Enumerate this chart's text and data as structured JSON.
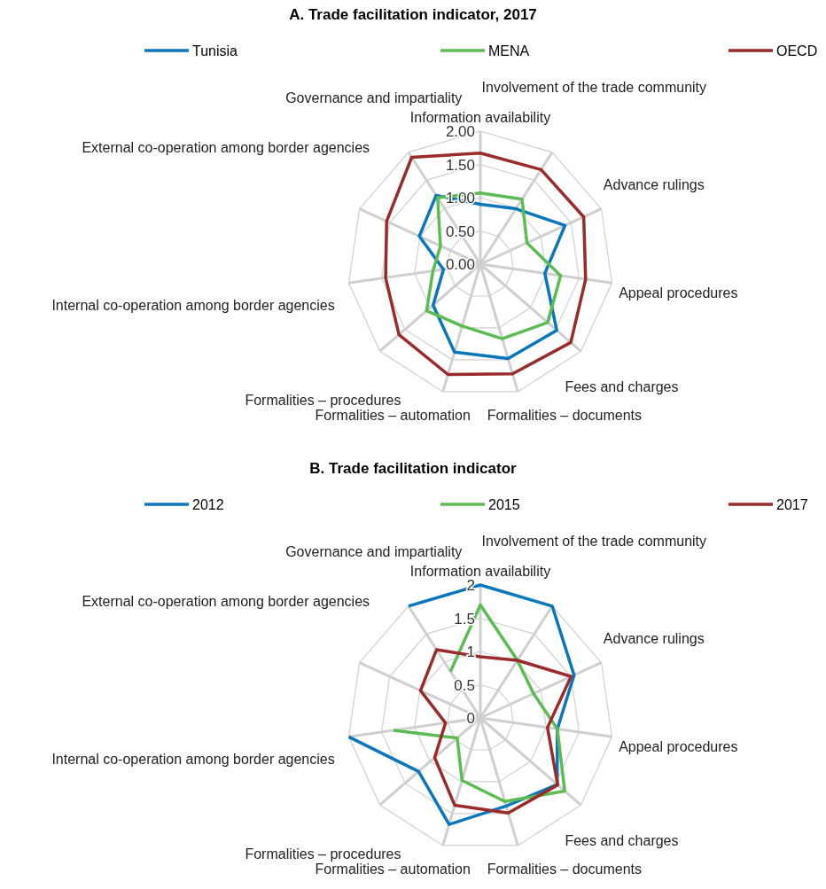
{
  "chart_data": [
    {
      "type": "radar",
      "title": "A. Trade facilitation indicator, 2017",
      "categories": [
        "Information availability",
        "Involvement of the trade community",
        "Advance rulings",
        "Appeal procedures",
        "Fees and charges",
        "Formalities – documents",
        "Formalities – automation",
        "Formalities – procedures",
        "Internal co-operation among border agencies",
        "External co-operation among border agencies",
        "Governance and impartiality"
      ],
      "series": [
        {
          "name": "Tunisia",
          "color": "#0a77bd",
          "values": [
            0.9,
            0.99,
            1.4,
            0.98,
            1.52,
            1.48,
            1.38,
            0.94,
            0.56,
            1.01,
            1.23
          ]
        },
        {
          "name": "MENA",
          "color": "#5cbb52",
          "values": [
            1.07,
            1.16,
            0.77,
            1.22,
            1.34,
            1.17,
            0.97,
            1.07,
            0.72,
            0.66,
            1.19
          ]
        },
        {
          "name": "OECD",
          "color": "#9b2b2b",
          "values": [
            1.67,
            1.69,
            1.71,
            1.6,
            1.8,
            1.72,
            1.73,
            1.62,
            1.44,
            1.55,
            1.91
          ]
        }
      ],
      "ylim": [
        0,
        2
      ],
      "yticks": [
        {
          "value": 0,
          "label": "0.00"
        },
        {
          "value": 0.5,
          "label": "0.50"
        },
        {
          "value": 1,
          "label": "1.00"
        },
        {
          "value": 1.5,
          "label": "1.50"
        },
        {
          "value": 2,
          "label": "2.00"
        }
      ],
      "grid": true,
      "legend": "top"
    },
    {
      "type": "radar",
      "title": "B. Trade facilitation indicator",
      "categories": [
        "Information availability",
        "Involvement of the trade community",
        "Advance rulings",
        "Appeal procedures",
        "Fees and charges",
        "Formalities – documents",
        "Formalities – automation",
        "Formalities – procedures",
        "Internal co-operation among border agencies",
        "External co-operation among border agencies",
        "Governance and impartiality"
      ],
      "series": [
        {
          "name": "2012",
          "color": "#0a77bd",
          "values": [
            2,
            2,
            1.55,
            1.17,
            1.53,
            1.38,
            1.67,
            1.23,
            2,
            null,
            2
          ]
        },
        {
          "name": "2015",
          "color": "#5cbb52",
          "values": [
            1.7,
            1.03,
            0.88,
            1.17,
            1.68,
            1.31,
            0.98,
            0.46,
            1.32,
            null,
            0.83
          ]
        },
        {
          "name": "2017",
          "color": "#9b2b2b",
          "values": [
            0.92,
            1.03,
            1.5,
            1.02,
            1.54,
            1.49,
            1.37,
            0.91,
            0.53,
            0.99,
            1.22
          ]
        }
      ],
      "ylim": [
        0,
        2
      ],
      "yticks": [
        0,
        0.5,
        1,
        1.5,
        2
      ],
      "grid": true,
      "legend": "top"
    }
  ]
}
